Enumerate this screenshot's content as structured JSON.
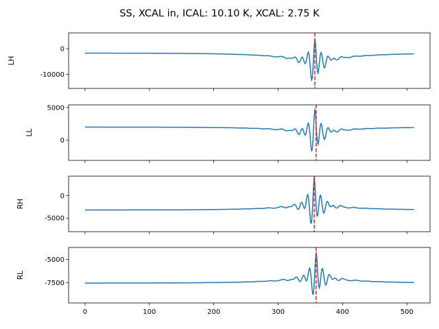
{
  "chart_data": {
    "type": "line",
    "title": "SS, XCAL in, ICAL: 10.10 K, XCAL: 2.75 K",
    "line_color": "#1f77b4",
    "marker_color": "#d62728",
    "x_ticks": [
      0,
      100,
      200,
      300,
      400,
      500
    ],
    "x_range": [
      -25.5,
      536
    ],
    "x_points": 512,
    "panels": [
      {
        "ylabel": "LH",
        "ylim": [
          -15500,
          6200
        ],
        "yticks": [
          -10000,
          0
        ],
        "baseline": -1700,
        "peak_x": 357,
        "peak_value": 4000,
        "trough_value": -14800,
        "vline_x": 357
      },
      {
        "ylabel": "LL",
        "ylim": [
          -3100,
          5400
        ],
        "yticks": [
          0,
          5000
        ],
        "baseline": 2000,
        "peak_x": 357,
        "peak_value": 4800,
        "trough_value": -2700,
        "vline_x": 359
      },
      {
        "ylabel": "RH",
        "ylim": [
          -8000,
          4300
        ],
        "yticks": [
          -5000,
          0
        ],
        "baseline": -3200,
        "peak_x": 356,
        "peak_value": 4000,
        "trough_value": -7600,
        "vline_x": 356
      },
      {
        "ylabel": "RL",
        "ylim": [
          -9700,
          -3700
        ],
        "yticks": [
          -7500,
          -5000
        ],
        "baseline": -7550,
        "peak_x": 359,
        "peak_value": -4200,
        "trough_value": -9400,
        "vline_x": 359
      }
    ]
  }
}
